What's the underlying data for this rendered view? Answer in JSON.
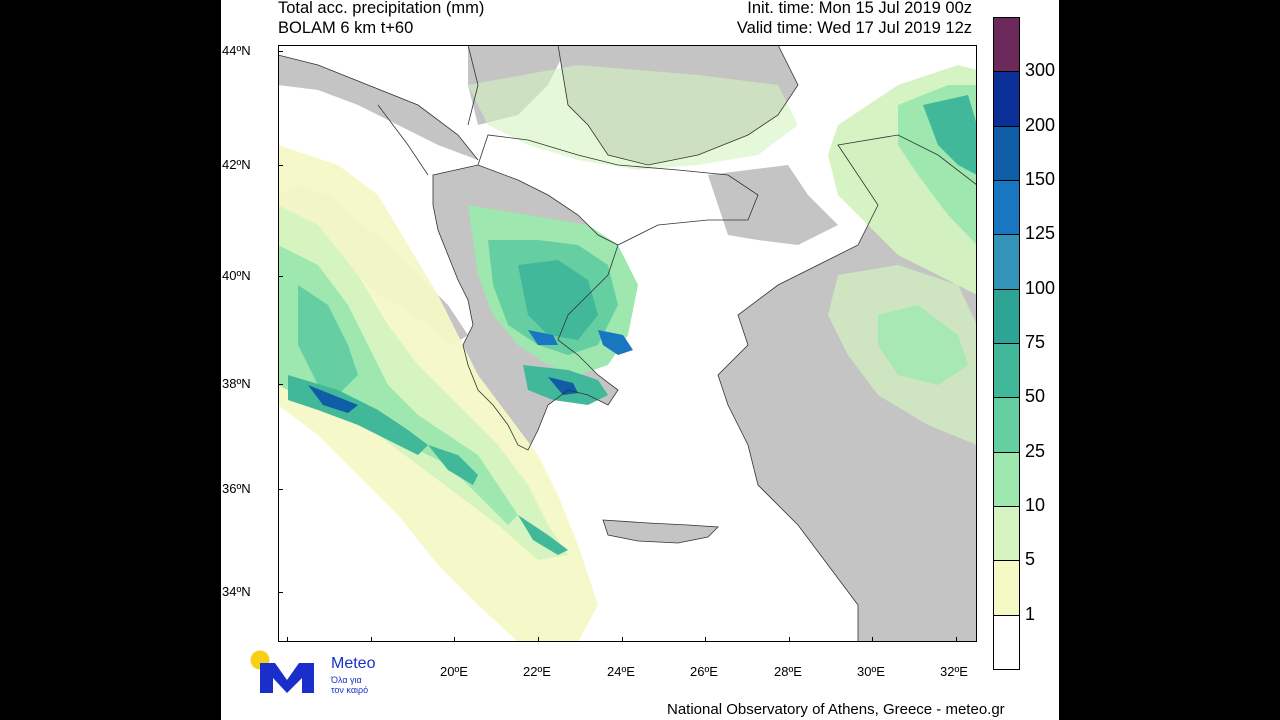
{
  "header": {
    "title_line1": "Total acc. precipitation (mm)",
    "title_line2": "BOLAM 6 km t+60",
    "init_time": "Init. time: Mon 15 Jul 2019 00z",
    "valid_time": "Valid time: Wed 17 Jul 2019 12z"
  },
  "axes": {
    "lat_labels": [
      "44ºN",
      "42ºN",
      "40ºN",
      "38ºN",
      "36ºN",
      "34ºN"
    ],
    "lon_labels": [
      "20ºE",
      "22ºE",
      "24ºE",
      "26ºE",
      "28ºE",
      "30ºE",
      "32ºE"
    ]
  },
  "colorbar": {
    "levels": [
      "1",
      "5",
      "10",
      "25",
      "50",
      "75",
      "100",
      "125",
      "150",
      "200",
      "300"
    ],
    "colors": [
      "#ffffff",
      "#f4f9c6",
      "#d4f3c0",
      "#9ee8b0",
      "#66cfa2",
      "#41b89a",
      "#2ea594",
      "#3393b9",
      "#1976c0",
      "#0e5da6",
      "#0a2f97",
      "#6c2a5c"
    ]
  },
  "map_colors": {
    "land": "#c4c4c4",
    "sea": "#ffffff",
    "outline": "#333333"
  },
  "logo": {
    "brand": "Meteo",
    "tagline_line1": "Όλα για",
    "tagline_line2": "τον καιρό",
    "brand_color": "#1a2fc9",
    "sun_color": "#f6cf16"
  },
  "footer": {
    "credit": "National Observatory of Athens, Greece - meteo.gr"
  }
}
